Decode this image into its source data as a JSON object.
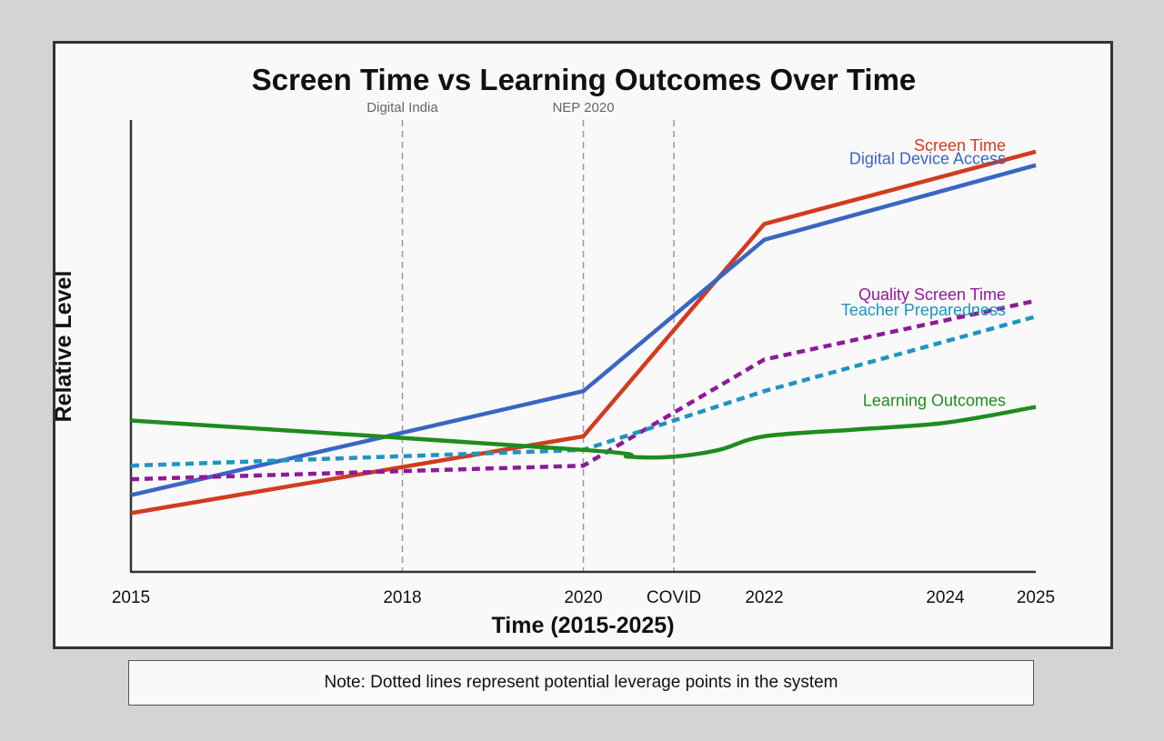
{
  "chart_data": {
    "type": "line",
    "title": "Screen Time vs Learning Outcomes Over Time",
    "xlabel": "Time (2015-2025)",
    "ylabel": "Relative Level",
    "x_ticks": [
      {
        "x": 2015,
        "label": "2015"
      },
      {
        "x": 2018,
        "label": "2018"
      },
      {
        "x": 2020,
        "label": "2020"
      },
      {
        "x": 2021,
        "label": "COVID"
      },
      {
        "x": 2022,
        "label": "2022"
      },
      {
        "x": 2024,
        "label": "2024"
      },
      {
        "x": 2025,
        "label": "2025"
      }
    ],
    "xlim": [
      2015,
      2025
    ],
    "ylim": [
      0,
      100
    ],
    "grid": false,
    "events": [
      {
        "x": 2018,
        "label": "Digital India"
      },
      {
        "x": 2020,
        "label": "NEP 2020"
      },
      {
        "x": 2021,
        "label": ""
      }
    ],
    "series": [
      {
        "name": "Screen Time",
        "color": "#d23b1f",
        "dashed": false,
        "smooth": false,
        "x": [
          2015,
          2020,
          2022,
          2025
        ],
        "y": [
          13,
          30,
          77,
          93
        ]
      },
      {
        "name": "Digital Device Access",
        "color": "#3a66c4",
        "dashed": false,
        "smooth": false,
        "x": [
          2015,
          2020,
          2022,
          2025
        ],
        "y": [
          17,
          40,
          73.5,
          90
        ]
      },
      {
        "name": "Quality Screen Time",
        "color": "#8e1a99",
        "dashed": true,
        "smooth": false,
        "x": [
          2015,
          2020,
          2022,
          2025
        ],
        "y": [
          20.5,
          23.5,
          47,
          60
        ]
      },
      {
        "name": "Teacher Preparedness",
        "color": "#1e95c2",
        "dashed": true,
        "smooth": false,
        "x": [
          2015,
          2020,
          2022,
          2025
        ],
        "y": [
          23.5,
          27,
          40,
          56.5
        ]
      },
      {
        "name": "Learning Outcomes",
        "color": "#1e8c1e",
        "dashed": false,
        "smooth": true,
        "x": [
          2015,
          2020,
          2020.5,
          2021,
          2021.5,
          2022,
          2023,
          2024,
          2025
        ],
        "y": [
          33.5,
          27,
          25.5,
          25.5,
          27,
          30,
          31.5,
          33,
          36.5
        ]
      }
    ]
  },
  "note": "Note: Dotted lines represent potential leverage points in the system"
}
